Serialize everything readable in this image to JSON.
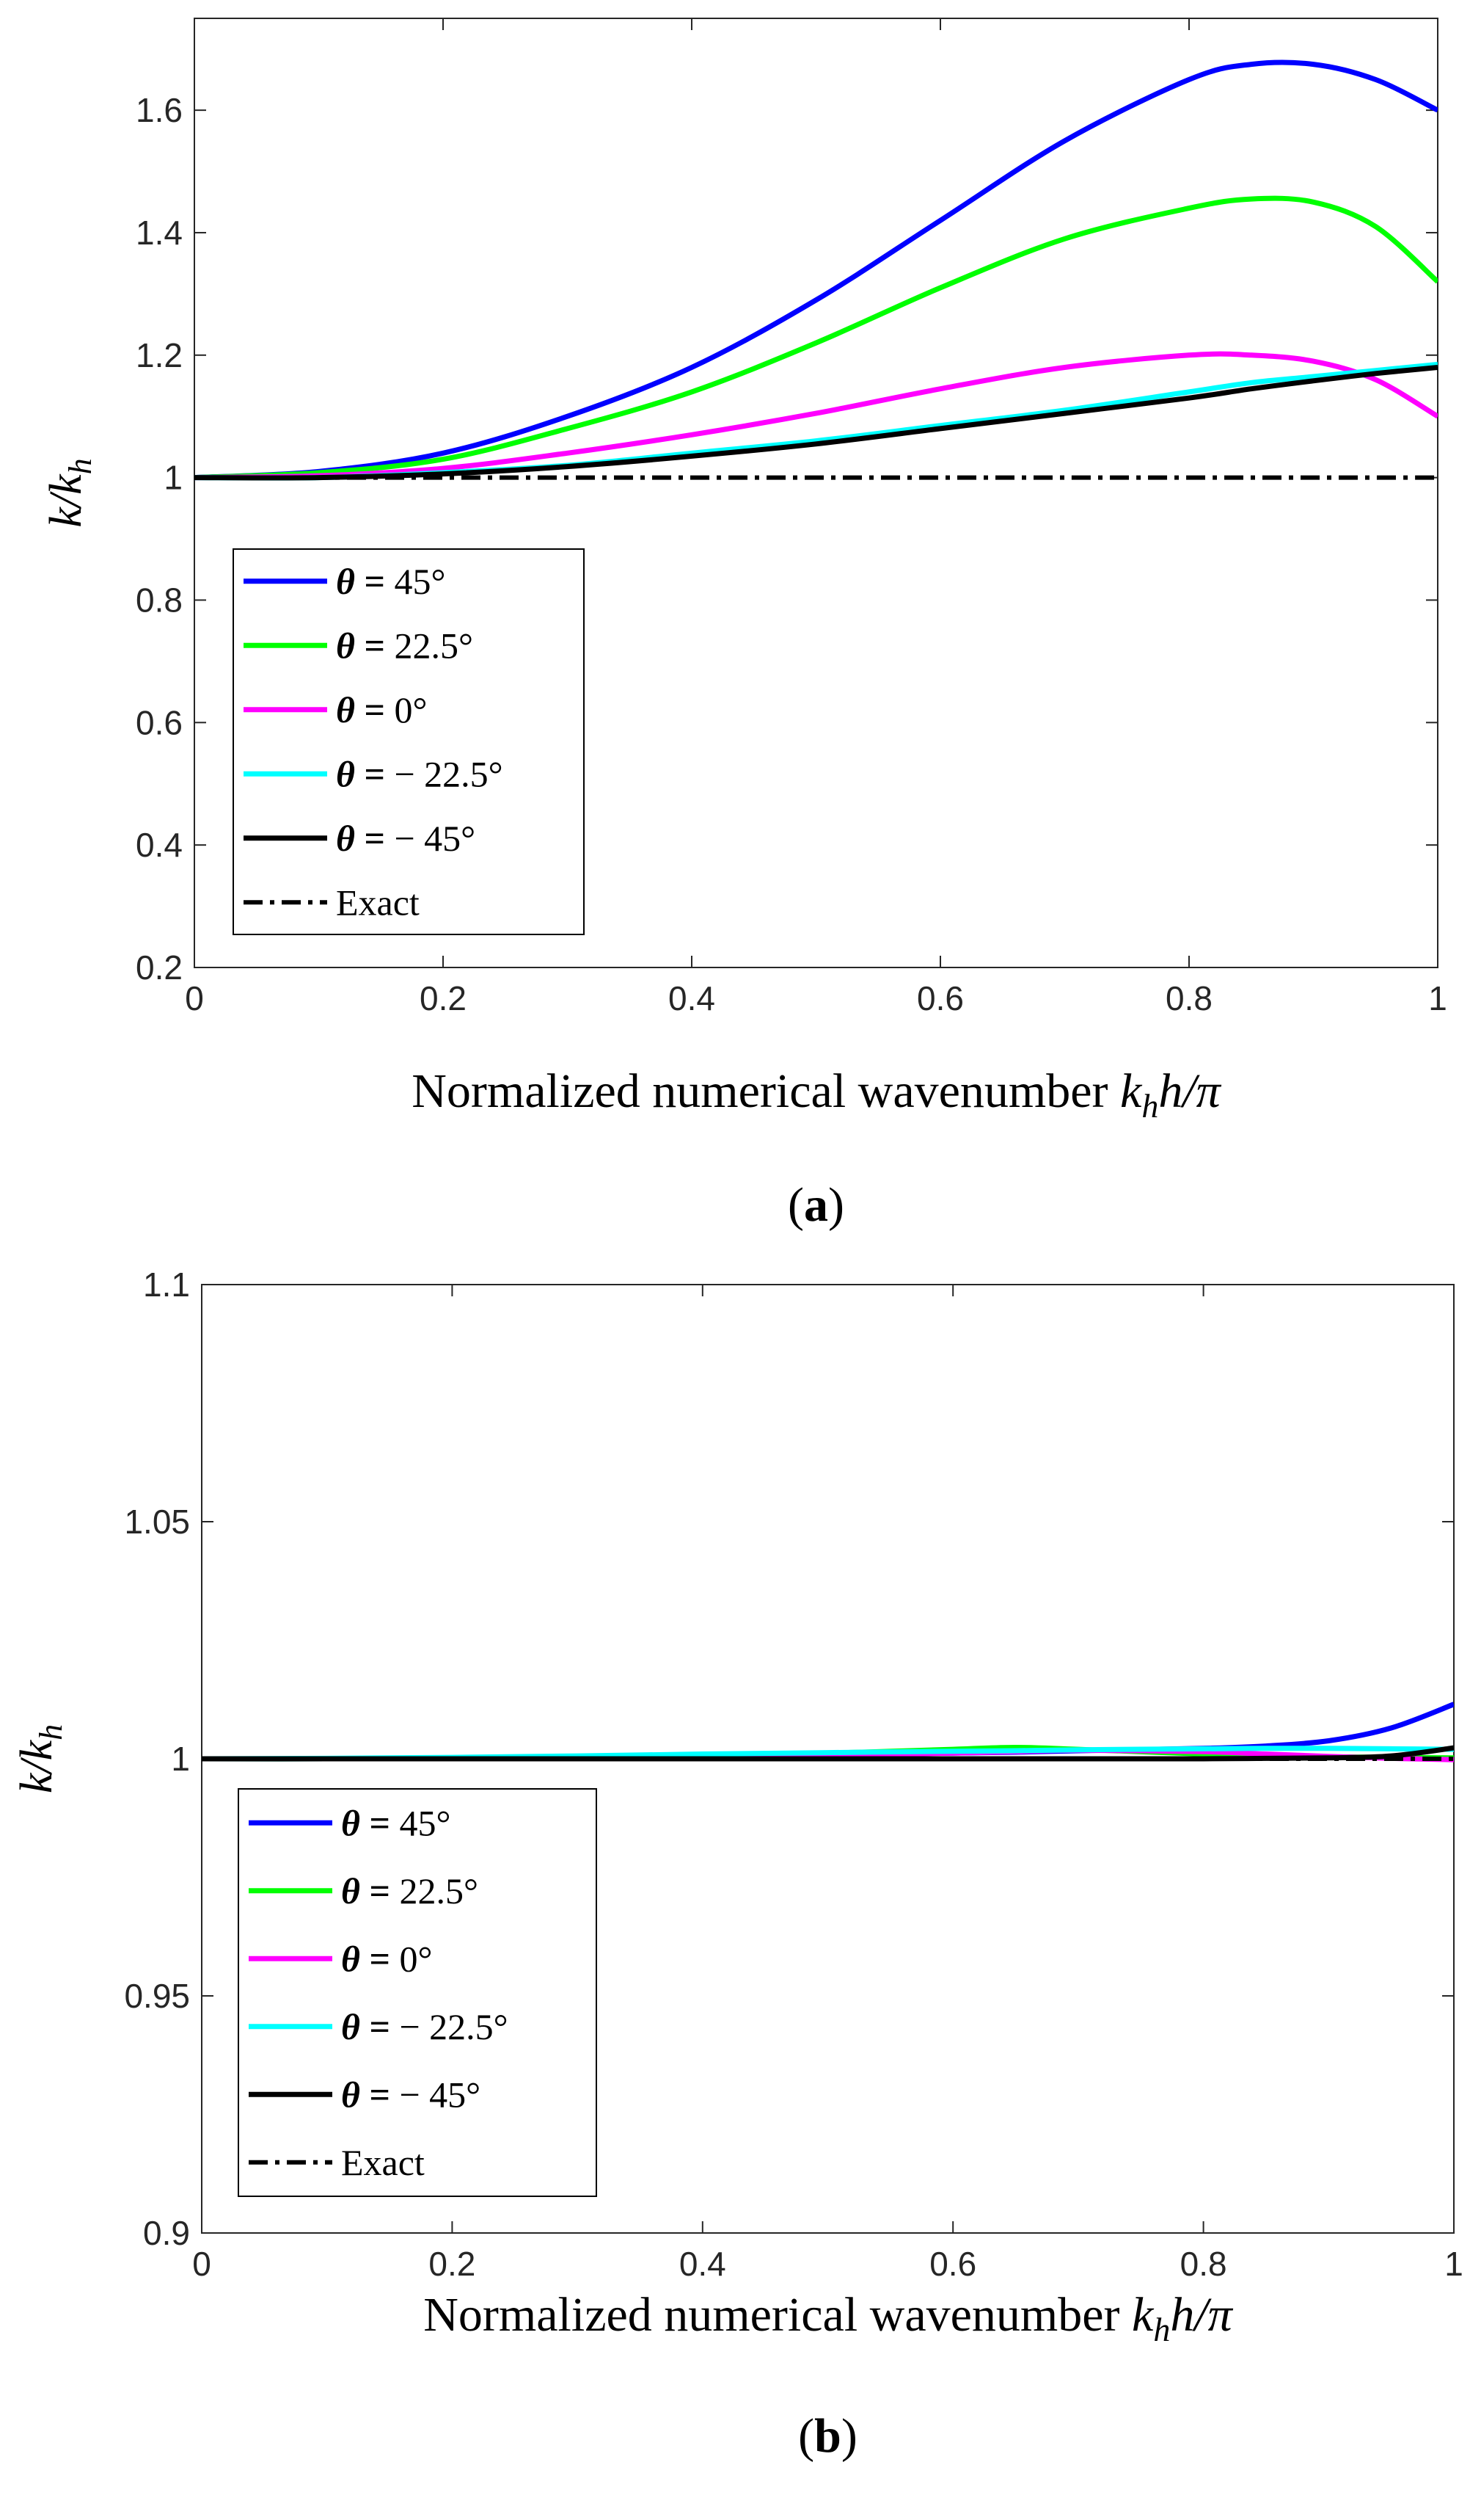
{
  "chart_data": [
    {
      "type": "line",
      "panel": "(a)",
      "panel_letter": "a",
      "xlabel": "Normalized numerical wavenumber k_h h/π",
      "xlabel_parts": {
        "prefix": "Normalized numerical wavenumber ",
        "k": "k",
        "sub": "h",
        "h": "h",
        "tail": "/π"
      },
      "ylabel": "k/k_h",
      "ylabel_parts": {
        "main": "k/k",
        "sub": "h"
      },
      "xlim": [
        0,
        1
      ],
      "ylim": [
        0.2,
        1.75
      ],
      "xticks": [
        0,
        0.2,
        0.4,
        0.6,
        0.8,
        1
      ],
      "xtick_labels": [
        "0",
        "0.2",
        "0.4",
        "0.6",
        "0.8",
        "1"
      ],
      "yticks": [
        0.2,
        0.4,
        0.6,
        0.8,
        1,
        1.2,
        1.4,
        1.6
      ],
      "ytick_labels": [
        "0.2",
        "0.4",
        "0.6",
        "0.8",
        "1",
        "1.2",
        "1.4",
        "1.6"
      ],
      "legend_position": "lower-left",
      "x": [
        0,
        0.1,
        0.2,
        0.3,
        0.4,
        0.5,
        0.6,
        0.7,
        0.8,
        0.85,
        0.9,
        0.95,
        1.0
      ],
      "series": [
        {
          "name": "θ = 45°",
          "theta": "45°",
          "sign": "",
          "color": "#0000ff",
          "style": "solid",
          "values": [
            1.0,
            1.01,
            1.04,
            1.1,
            1.18,
            1.29,
            1.42,
            1.55,
            1.65,
            1.675,
            1.675,
            1.65,
            1.6
          ]
        },
        {
          "name": "θ = 22.5°",
          "theta": "22.5°",
          "sign": "",
          "color": "#00ff00",
          "style": "solid",
          "values": [
            1.0,
            1.008,
            1.03,
            1.08,
            1.14,
            1.22,
            1.31,
            1.39,
            1.44,
            1.455,
            1.45,
            1.41,
            1.32
          ]
        },
        {
          "name": "θ = 0°",
          "theta": "0°",
          "sign": "",
          "color": "#ff00ff",
          "style": "solid",
          "values": [
            1.0,
            1.003,
            1.015,
            1.04,
            1.07,
            1.105,
            1.145,
            1.18,
            1.2,
            1.2,
            1.19,
            1.16,
            1.1
          ]
        },
        {
          "name": "θ = − 22.5°",
          "theta": "22.5°",
          "sign": "−",
          "color": "#00ffff",
          "style": "solid",
          "values": [
            1.0,
            1.0,
            1.008,
            1.02,
            1.04,
            1.06,
            1.085,
            1.11,
            1.14,
            1.155,
            1.165,
            1.175,
            1.185
          ]
        },
        {
          "name": "θ = − 45°",
          "theta": "45°",
          "sign": "−",
          "color": "#000000",
          "style": "solid",
          "values": [
            1.0,
            1.0,
            1.006,
            1.018,
            1.035,
            1.055,
            1.08,
            1.105,
            1.13,
            1.145,
            1.158,
            1.17,
            1.18
          ]
        },
        {
          "name": "Exact",
          "color": "#000000",
          "style": "dashdot",
          "values": [
            1,
            1,
            1,
            1,
            1,
            1,
            1,
            1,
            1,
            1,
            1,
            1,
            1
          ]
        }
      ]
    },
    {
      "type": "line",
      "panel": "(b)",
      "panel_letter": "b",
      "xlabel": "Normalized numerical wavenumber k_h h/π",
      "xlabel_parts": {
        "prefix": "Normalized numerical wavenumber ",
        "k": "k",
        "sub": "h",
        "h": "h",
        "tail": "/π"
      },
      "ylabel": "k/k_h",
      "ylabel_parts": {
        "main": "k/k",
        "sub": "h"
      },
      "xlim": [
        0,
        1
      ],
      "ylim": [
        0.9,
        1.1
      ],
      "xticks": [
        0,
        0.2,
        0.4,
        0.6,
        0.8,
        1
      ],
      "xtick_labels": [
        "0",
        "0.2",
        "0.4",
        "0.6",
        "0.8",
        "1"
      ],
      "yticks": [
        0.9,
        0.95,
        1,
        1.05,
        1.1
      ],
      "ytick_labels": [
        "0.9",
        "0.95",
        "1",
        "1.05",
        "1.1"
      ],
      "legend_position": "lower-left",
      "x": [
        0,
        0.1,
        0.2,
        0.3,
        0.4,
        0.5,
        0.6,
        0.65,
        0.7,
        0.8,
        0.85,
        0.9,
        0.95,
        1.0
      ],
      "series": [
        {
          "name": "θ = 45°",
          "theta": "45°",
          "sign": "",
          "color": "#0000ff",
          "style": "solid",
          "values": [
            1.0,
            1.0,
            1.0002,
            1.0004,
            1.0006,
            1.0009,
            1.0012,
            1.0014,
            1.0017,
            1.0022,
            1.0027,
            1.0038,
            1.0065,
            1.0115
          ]
        },
        {
          "name": "θ = 22.5°",
          "theta": "22.5°",
          "sign": "",
          "color": "#00ff00",
          "style": "solid",
          "values": [
            1.0,
            1.0,
            1.0002,
            1.0004,
            1.0008,
            1.0012,
            1.002,
            1.0024,
            1.002,
            1.001,
            1.0007,
            1.0004,
            1.0003,
            1.0002
          ]
        },
        {
          "name": "θ = 0°",
          "theta": "0°",
          "sign": "",
          "color": "#ff00ff",
          "style": "solid",
          "values": [
            1.0,
            1.0,
            1.0001,
            1.0002,
            1.0004,
            1.0007,
            1.0012,
            1.0015,
            1.0018,
            1.0015,
            1.001,
            1.0005,
            1.0001,
            0.9998
          ]
        },
        {
          "name": "θ = − 22.5°",
          "theta": "22.5°",
          "sign": "−",
          "color": "#00ffff",
          "style": "solid",
          "values": [
            1.0,
            1.0001,
            1.0003,
            1.0006,
            1.001,
            1.0013,
            1.0016,
            1.0017,
            1.0019,
            1.0021,
            1.0022,
            1.0022,
            1.0021,
            1.002
          ]
        },
        {
          "name": "θ = − 45°",
          "theta": "45°",
          "sign": "−",
          "color": "#000000",
          "style": "solid",
          "values": [
            1.0,
            1.0,
            1.0,
            1.0,
            1.0,
            1.0,
            1.0,
            1.0,
            1.0,
            1.0,
            1.0001,
            1.0002,
            1.0006,
            1.0023
          ]
        },
        {
          "name": "Exact",
          "color": "#000000",
          "style": "dashdot",
          "values": [
            1,
            1,
            1,
            1,
            1,
            1,
            1,
            1,
            1,
            1,
            1,
            1,
            1,
            1
          ]
        }
      ]
    }
  ]
}
